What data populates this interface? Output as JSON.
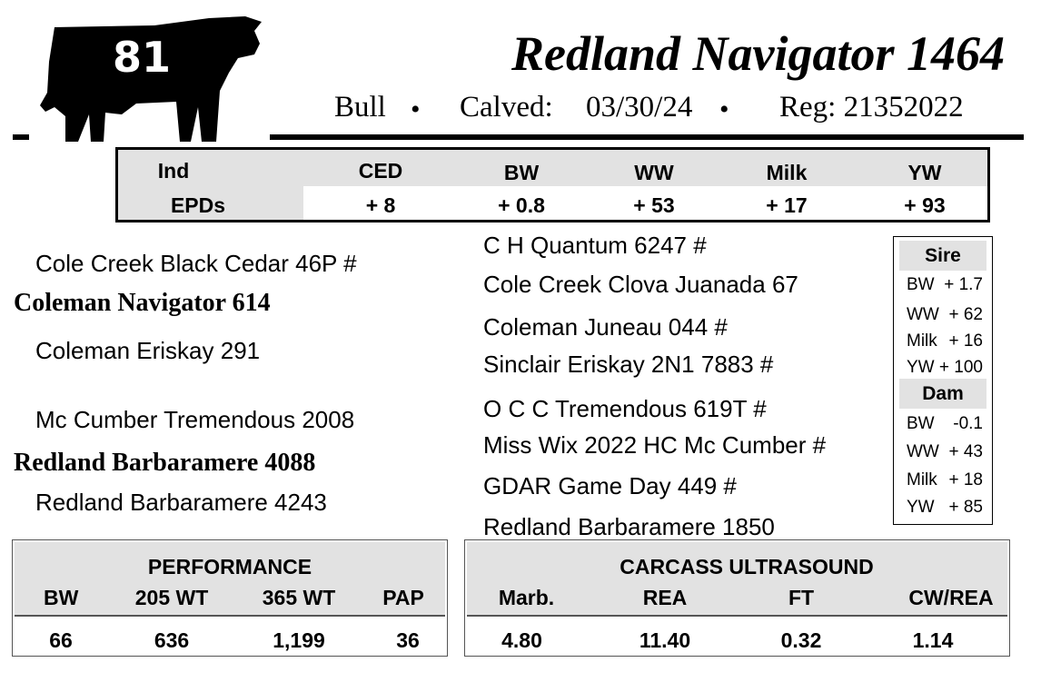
{
  "header": {
    "tag_number": "81",
    "name": "Redland Navigator 1464",
    "sex": "Bull",
    "calved_label": "Calved:",
    "calved": "03/30/24",
    "reg": "Reg: 21352022",
    "bullet": "•"
  },
  "epds": {
    "row_label_1": "Ind",
    "row_label_2": "EPDs",
    "columns": [
      {
        "label": "CED",
        "value": "+ 8"
      },
      {
        "label": "BW",
        "value": "+ 0.8"
      },
      {
        "label": "WW",
        "value": "+ 53"
      },
      {
        "label": "Milk",
        "value": "+ 17"
      },
      {
        "label": "YW",
        "value": "+ 93"
      }
    ]
  },
  "pedigree": {
    "sire": "Coleman Navigator 614",
    "sire_sire": "Cole Creek Black Cedar 46P #",
    "sire_dam": "Coleman Eriskay 291",
    "dam": "Redland Barbaramere 4088",
    "dam_sire": "Mc Cumber Tremendous 2008",
    "dam_dam": "Redland Barbaramere 4243",
    "great": [
      "C H Quantum 6247 #",
      "Cole Creek Clova Juanada 67",
      "Coleman Juneau 044 #",
      "Sinclair Eriskay 2N1 7883 #",
      "O C C Tremendous 619T #",
      "Miss Wix 2022 HC Mc Cumber #",
      "GDAR Game Day 449 #",
      "Redland Barbaramere 1850"
    ]
  },
  "parent_epds": {
    "sire": {
      "title": "Sire",
      "rows": [
        {
          "label": "BW",
          "value": "+ 1.7"
        },
        {
          "label": "WW",
          "value": "+ 62"
        },
        {
          "label": "Milk",
          "value": "+ 16"
        },
        {
          "label": "YW",
          "value": "+ 100"
        }
      ]
    },
    "dam": {
      "title": "Dam",
      "rows": [
        {
          "label": "BW",
          "value": "-0.1"
        },
        {
          "label": "WW",
          "value": "+ 43"
        },
        {
          "label": "Milk",
          "value": "+ 18"
        },
        {
          "label": "YW",
          "value": "+ 85"
        }
      ]
    }
  },
  "performance": {
    "title": "PERFORMANCE",
    "columns": [
      {
        "label": "BW",
        "value": "66"
      },
      {
        "label": "205 WT",
        "value": "636"
      },
      {
        "label": "365 WT",
        "value": "1,199"
      },
      {
        "label": "PAP",
        "value": "36"
      }
    ]
  },
  "carcass": {
    "title": "CARCASS ULTRASOUND",
    "columns": [
      {
        "label": "Marb.",
        "value": "4.80"
      },
      {
        "label": "REA",
        "value": "11.40"
      },
      {
        "label": "FT",
        "value": "0.32"
      },
      {
        "label": "CW/REA",
        "value": "1.14"
      }
    ]
  }
}
